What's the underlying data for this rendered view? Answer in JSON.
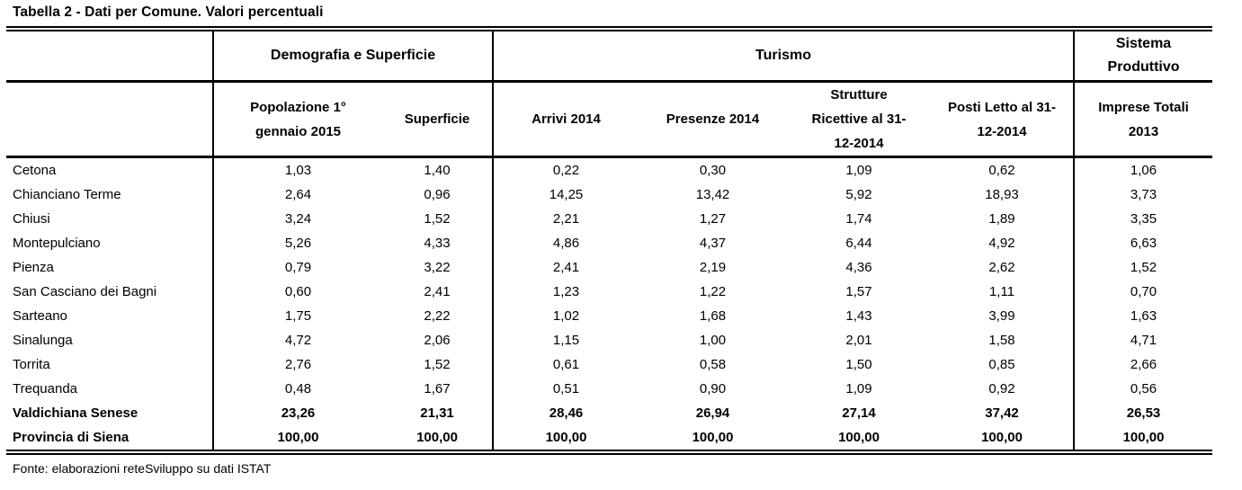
{
  "title": "Tabella 2 - Dati per Comune. Valori percentuali",
  "source": "Fonte: elaborazioni reteSviluppo su dati ISTAT",
  "colors": {
    "text": "#000000",
    "border": "#000000",
    "background": "#ffffff"
  },
  "table": {
    "group_headers": [
      {
        "label": "",
        "colspan": 1
      },
      {
        "label": "Demografia e Superficie",
        "colspan": 2
      },
      {
        "label": "Turismo",
        "colspan": 4
      },
      {
        "label": "Sistema\nProduttivo",
        "colspan": 1
      }
    ],
    "column_headers": [
      "",
      "Popolazione 1°\ngennaio 2015",
      "Superficie",
      "Arrivi 2014",
      "Presenze 2014",
      "Strutture\nRicettive al 31-\n12-2014",
      "Posti Letto al 31-\n12-2014",
      "Imprese Totali\n2013"
    ],
    "rows": [
      {
        "comune": "Cetona",
        "values": [
          "1,03",
          "1,40",
          "0,22",
          "0,30",
          "1,09",
          "0,62",
          "1,06"
        ],
        "bold": false
      },
      {
        "comune": "Chianciano Terme",
        "values": [
          "2,64",
          "0,96",
          "14,25",
          "13,42",
          "5,92",
          "18,93",
          "3,73"
        ],
        "bold": false
      },
      {
        "comune": "Chiusi",
        "values": [
          "3,24",
          "1,52",
          "2,21",
          "1,27",
          "1,74",
          "1,89",
          "3,35"
        ],
        "bold": false
      },
      {
        "comune": "Montepulciano",
        "values": [
          "5,26",
          "4,33",
          "4,86",
          "4,37",
          "6,44",
          "4,92",
          "6,63"
        ],
        "bold": false
      },
      {
        "comune": "Pienza",
        "values": [
          "0,79",
          "3,22",
          "2,41",
          "2,19",
          "4,36",
          "2,62",
          "1,52"
        ],
        "bold": false
      },
      {
        "comune": "San Casciano dei Bagni",
        "values": [
          "0,60",
          "2,41",
          "1,23",
          "1,22",
          "1,57",
          "1,11",
          "0,70"
        ],
        "bold": false
      },
      {
        "comune": "Sarteano",
        "values": [
          "1,75",
          "2,22",
          "1,02",
          "1,68",
          "1,43",
          "3,99",
          "1,63"
        ],
        "bold": false
      },
      {
        "comune": "Sinalunga",
        "values": [
          "4,72",
          "2,06",
          "1,15",
          "1,00",
          "2,01",
          "1,58",
          "4,71"
        ],
        "bold": false
      },
      {
        "comune": "Torrita",
        "values": [
          "2,76",
          "1,52",
          "0,61",
          "0,58",
          "1,50",
          "0,85",
          "2,66"
        ],
        "bold": false
      },
      {
        "comune": "Trequanda",
        "values": [
          "0,48",
          "1,67",
          "0,51",
          "0,90",
          "1,09",
          "0,92",
          "0,56"
        ],
        "bold": false
      },
      {
        "comune": "Valdichiana Senese",
        "values": [
          "23,26",
          "21,31",
          "28,46",
          "26,94",
          "27,14",
          "37,42",
          "26,53"
        ],
        "bold": true
      },
      {
        "comune": "Provincia di Siena",
        "values": [
          "100,00",
          "100,00",
          "100,00",
          "100,00",
          "100,00",
          "100,00",
          "100,00"
        ],
        "bold": true
      }
    ]
  }
}
